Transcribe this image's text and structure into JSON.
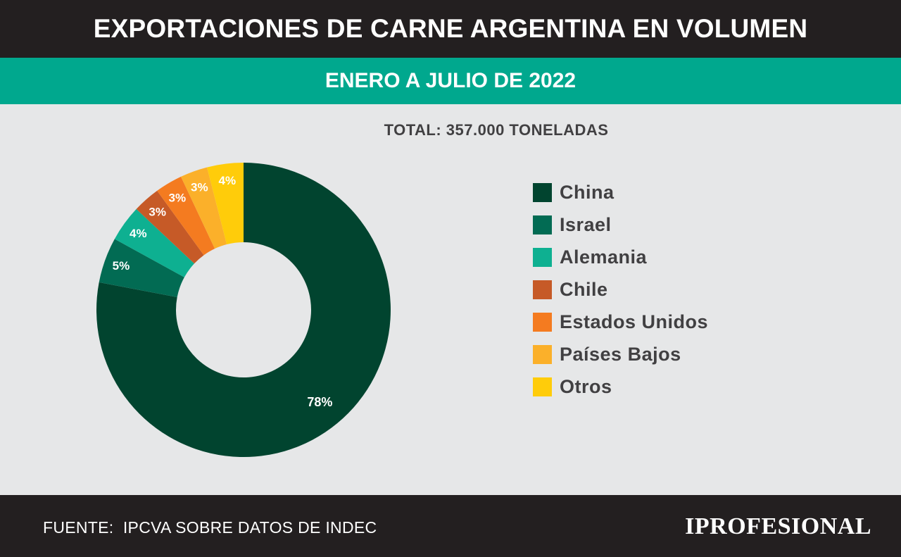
{
  "header": {
    "title": "EXPORTACIONES DE CARNE ARGENTINA EN VOLUMEN"
  },
  "subheader": {
    "period": "ENERO A JULIO DE 2022"
  },
  "total_label": "TOTAL: 357.000 TONELADAS",
  "chart_data": {
    "type": "pie",
    "title": "EXPORTACIONES DE CARNE ARGENTINA EN VOLUMEN",
    "subtitle": "ENERO A JULIO DE 2022",
    "legend_position": "right",
    "series": [
      {
        "name": "China",
        "value": 78,
        "label": "78%",
        "color": "#01442f"
      },
      {
        "name": "Israel",
        "value": 5,
        "label": "5%",
        "color": "#026b53"
      },
      {
        "name": "Alemania",
        "value": 4,
        "label": "4%",
        "color": "#0eb091"
      },
      {
        "name": "Chile",
        "value": 3,
        "label": "3%",
        "color": "#c65a27"
      },
      {
        "name": "Estados Unidos",
        "value": 3,
        "label": "3%",
        "color": "#f47b20"
      },
      {
        "name": "Países Bajos",
        "value": 3,
        "label": "3%",
        "color": "#fbb02a"
      },
      {
        "name": "Otros",
        "value": 4,
        "label": "4%",
        "color": "#ffcc0a"
      }
    ]
  },
  "footer": {
    "source": "FUENTE:  IPCVA SOBRE DATOS DE INDEC",
    "brand": "IPROFESIONAL"
  }
}
